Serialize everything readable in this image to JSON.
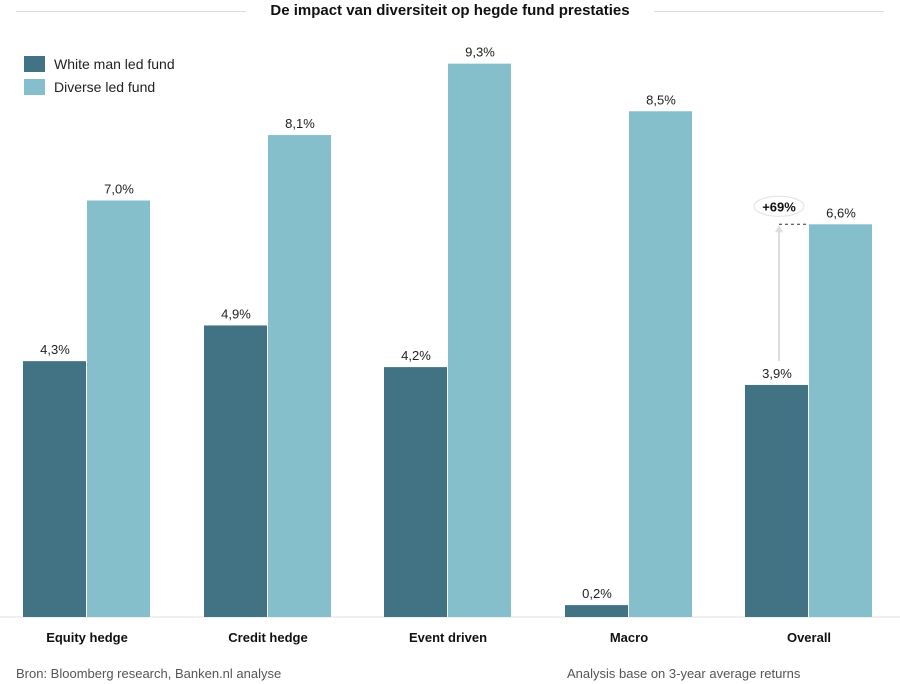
{
  "chart_data": {
    "type": "bar",
    "title": "De impact van diversiteit op hegde fund prestaties",
    "categories": [
      "Equity hedge",
      "Credit hedge",
      "Event driven",
      "Macro",
      "Overall"
    ],
    "series": [
      {
        "name": "White man led fund",
        "color": "#427385",
        "values": [
          4.3,
          4.9,
          4.2,
          0.2,
          3.9
        ],
        "labels": [
          "4,3%",
          "4,9%",
          "4,2%",
          "0,2%",
          "3,9%"
        ]
      },
      {
        "name": "Diverse led fund",
        "color": "#86bfcc",
        "values": [
          7.0,
          8.1,
          9.3,
          8.5,
          6.6
        ],
        "labels": [
          "7,0%",
          "8,1%",
          "9,3%",
          "8,5%",
          "6,6%"
        ]
      }
    ],
    "ylim": [
      0,
      10
    ],
    "grid": false,
    "legend": "top-left",
    "annotation": {
      "category": "Overall",
      "text": "+69%"
    },
    "xlabel": "",
    "ylabel": ""
  },
  "footer": {
    "source": "Bron: Bloomberg  research, Banken.nl analyse",
    "note": "Analysis base on 3-year average returns"
  }
}
